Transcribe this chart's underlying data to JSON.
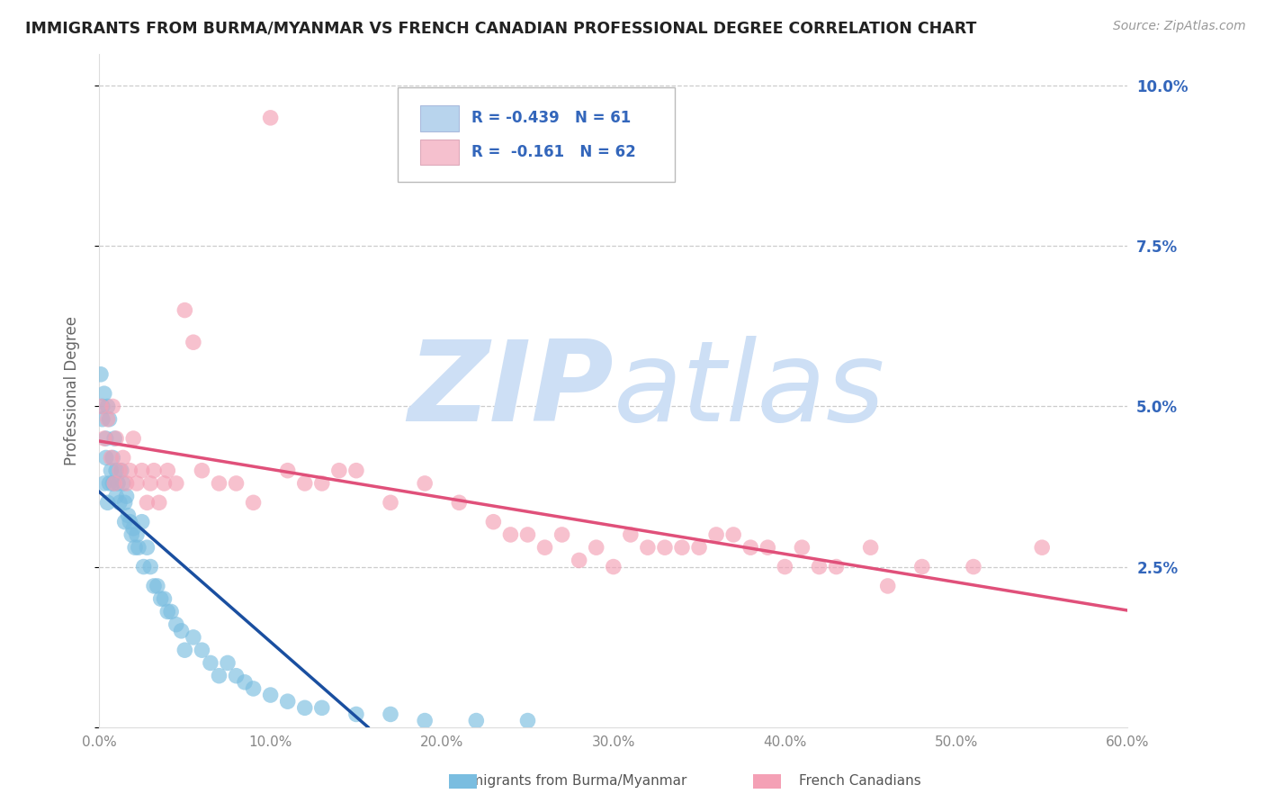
{
  "title": "IMMIGRANTS FROM BURMA/MYANMAR VS FRENCH CANADIAN PROFESSIONAL DEGREE CORRELATION CHART",
  "source": "Source: ZipAtlas.com",
  "ylabel": "Professional Degree",
  "r_blue": -0.439,
  "n_blue": 61,
  "r_pink": -0.161,
  "n_pink": 62,
  "xlim": [
    0.0,
    0.6
  ],
  "ylim": [
    0.0,
    0.105
  ],
  "yticks": [
    0.0,
    0.025,
    0.05,
    0.075,
    0.1
  ],
  "ytick_labels": [
    "",
    "2.5%",
    "5.0%",
    "7.5%",
    "10.0%"
  ],
  "xticks": [
    0.0,
    0.1,
    0.2,
    0.3,
    0.4,
    0.5,
    0.6
  ],
  "xtick_labels": [
    "0.0%",
    "10.0%",
    "20.0%",
    "30.0%",
    "40.0%",
    "50.0%",
    "60.0%"
  ],
  "color_blue": "#7abde0",
  "color_pink": "#f4a0b5",
  "line_color_blue": "#1a4fa0",
  "line_color_pink": "#e0507a",
  "legend_box_color_blue": "#b8d4ed",
  "legend_box_color_pink": "#f5c0ce",
  "bg_color": "#ffffff",
  "grid_color": "#cccccc",
  "watermark_color": "#cddff5",
  "title_color": "#222222",
  "axis_label_color": "#666666",
  "legend_text_color": "#3366bb",
  "tick_color": "#888888",
  "legend_label1": "Immigrants from Burma/Myanmar",
  "legend_label2": "French Canadians",
  "blue_x": [
    0.001,
    0.002,
    0.002,
    0.003,
    0.003,
    0.004,
    0.004,
    0.005,
    0.005,
    0.006,
    0.006,
    0.007,
    0.008,
    0.008,
    0.009,
    0.01,
    0.01,
    0.011,
    0.012,
    0.013,
    0.014,
    0.015,
    0.015,
    0.016,
    0.017,
    0.018,
    0.019,
    0.02,
    0.021,
    0.022,
    0.023,
    0.025,
    0.026,
    0.028,
    0.03,
    0.032,
    0.034,
    0.036,
    0.038,
    0.04,
    0.042,
    0.045,
    0.048,
    0.05,
    0.055,
    0.06,
    0.065,
    0.07,
    0.075,
    0.08,
    0.085,
    0.09,
    0.1,
    0.11,
    0.12,
    0.13,
    0.15,
    0.17,
    0.19,
    0.22,
    0.25
  ],
  "blue_y": [
    0.055,
    0.048,
    0.05,
    0.052,
    0.038,
    0.045,
    0.042,
    0.05,
    0.035,
    0.048,
    0.038,
    0.04,
    0.042,
    0.038,
    0.045,
    0.04,
    0.036,
    0.038,
    0.035,
    0.04,
    0.038,
    0.035,
    0.032,
    0.036,
    0.033,
    0.032,
    0.03,
    0.031,
    0.028,
    0.03,
    0.028,
    0.032,
    0.025,
    0.028,
    0.025,
    0.022,
    0.022,
    0.02,
    0.02,
    0.018,
    0.018,
    0.016,
    0.015,
    0.012,
    0.014,
    0.012,
    0.01,
    0.008,
    0.01,
    0.008,
    0.007,
    0.006,
    0.005,
    0.004,
    0.003,
    0.003,
    0.002,
    0.002,
    0.001,
    0.001,
    0.001
  ],
  "pink_x": [
    0.001,
    0.003,
    0.005,
    0.007,
    0.008,
    0.009,
    0.01,
    0.012,
    0.014,
    0.016,
    0.018,
    0.02,
    0.022,
    0.025,
    0.028,
    0.03,
    0.032,
    0.035,
    0.038,
    0.04,
    0.045,
    0.05,
    0.055,
    0.06,
    0.07,
    0.08,
    0.09,
    0.1,
    0.11,
    0.12,
    0.13,
    0.14,
    0.15,
    0.17,
    0.19,
    0.21,
    0.23,
    0.25,
    0.27,
    0.29,
    0.31,
    0.33,
    0.35,
    0.37,
    0.39,
    0.41,
    0.43,
    0.45,
    0.48,
    0.51,
    0.24,
    0.26,
    0.28,
    0.3,
    0.32,
    0.34,
    0.36,
    0.38,
    0.4,
    0.42,
    0.46,
    0.55
  ],
  "pink_y": [
    0.05,
    0.045,
    0.048,
    0.042,
    0.05,
    0.038,
    0.045,
    0.04,
    0.042,
    0.038,
    0.04,
    0.045,
    0.038,
    0.04,
    0.035,
    0.038,
    0.04,
    0.035,
    0.038,
    0.04,
    0.038,
    0.065,
    0.06,
    0.04,
    0.038,
    0.038,
    0.035,
    0.095,
    0.04,
    0.038,
    0.038,
    0.04,
    0.04,
    0.035,
    0.038,
    0.035,
    0.032,
    0.03,
    0.03,
    0.028,
    0.03,
    0.028,
    0.028,
    0.03,
    0.028,
    0.028,
    0.025,
    0.028,
    0.025,
    0.025,
    0.03,
    0.028,
    0.026,
    0.025,
    0.028,
    0.028,
    0.03,
    0.028,
    0.025,
    0.025,
    0.022,
    0.028
  ]
}
